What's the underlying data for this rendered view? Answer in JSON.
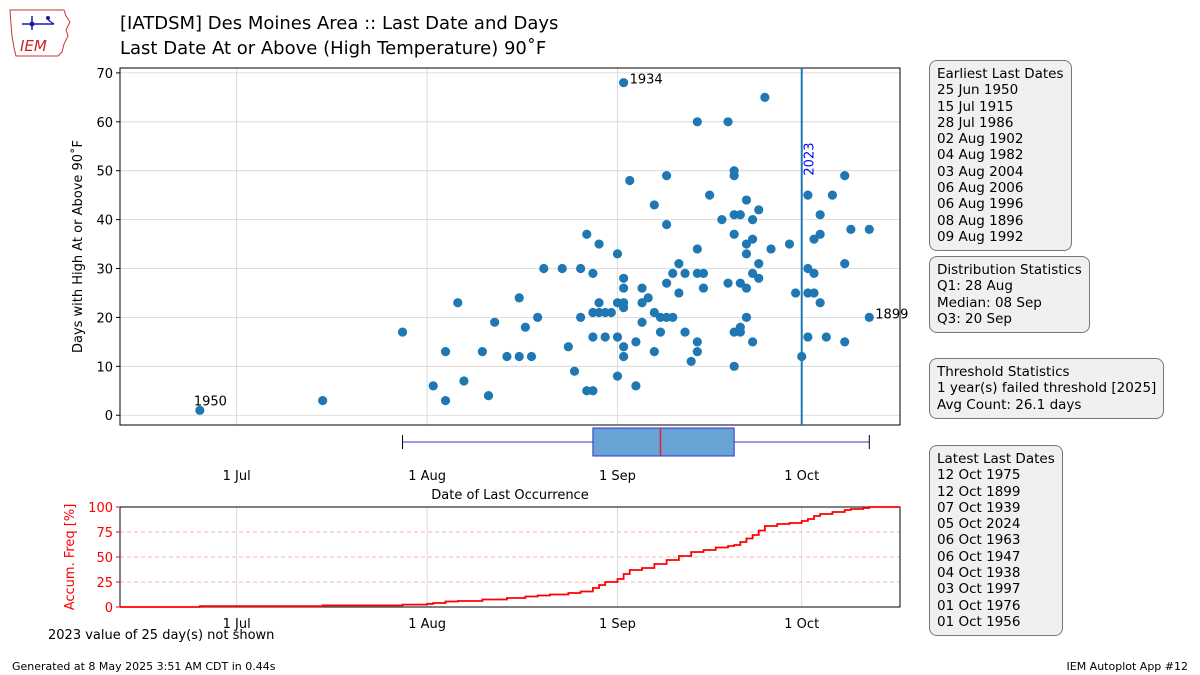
{
  "header": {
    "logo_text": "IEM",
    "title_line1": "[IATDSM] Des Moines Area :: Last Date and Days",
    "title_line2": "Last Date At or Above (High Temperature) 90˚F"
  },
  "boxes": {
    "earliest": {
      "heading": "Earliest Last Dates",
      "items": [
        "25 Jun 1950",
        "15 Jul 1915",
        "28 Jul 1986",
        "02 Aug 1902",
        "04 Aug 1982",
        "03 Aug 2004",
        "06 Aug 2006",
        "06 Aug 1996",
        "08 Aug 1896",
        "09 Aug 1992"
      ]
    },
    "distribution": {
      "heading": "Distribution Statistics",
      "items": [
        "Q1: 28 Aug",
        "Median: 08 Sep",
        "Q3: 20 Sep"
      ]
    },
    "threshold": {
      "heading": "Threshold Statistics",
      "items": [
        "1 year(s) failed threshold [2025]",
        "Avg Count: 26.1 days"
      ]
    },
    "latest": {
      "heading": "Latest Last Dates",
      "items": [
        "12 Oct 1975",
        "12 Oct 1899",
        "07 Oct 1939",
        "05 Oct 2024",
        "06 Oct 1963",
        "06 Oct 1947",
        "04 Oct 1938",
        "03 Oct 1997",
        "01 Oct 1976",
        "01 Oct 1956"
      ]
    }
  },
  "footer": {
    "note": "2023 value of 25 day(s) not shown",
    "generated": "Generated at 8 May 2025 3:51 AM CDT in 0.44s",
    "app": "IEM Autoplot App #12"
  },
  "chart_data": [
    {
      "type": "scatter",
      "ylabel": "Days with High At or Above 90˚F",
      "ylim": [
        -2,
        71
      ],
      "xlim": [
        163,
        290
      ],
      "yticks": [
        0,
        10,
        20,
        30,
        40,
        50,
        60,
        70
      ],
      "xticks": [
        {
          "label": "1 Jul",
          "doy": 182
        },
        {
          "label": "1 Aug",
          "doy": 213
        },
        {
          "label": "1 Sep",
          "doy": 244
        },
        {
          "label": "1 Oct",
          "doy": 274
        }
      ],
      "grid": true,
      "color": "#1f77b4",
      "points": [
        [
          176,
          1
        ],
        [
          196,
          3
        ],
        [
          209,
          17
        ],
        [
          214,
          6
        ],
        [
          216,
          3
        ],
        [
          216,
          13
        ],
        [
          218,
          23
        ],
        [
          219,
          7
        ],
        [
          222,
          13
        ],
        [
          223,
          4
        ],
        [
          224,
          19
        ],
        [
          226,
          12
        ],
        [
          228,
          12
        ],
        [
          228,
          24
        ],
        [
          229,
          18
        ],
        [
          230,
          12
        ],
        [
          231,
          20
        ],
        [
          232,
          30
        ],
        [
          235,
          30
        ],
        [
          236,
          14
        ],
        [
          237,
          9
        ],
        [
          238,
          20
        ],
        [
          238,
          30
        ],
        [
          239,
          5
        ],
        [
          239,
          37
        ],
        [
          240,
          5
        ],
        [
          240,
          16
        ],
        [
          240,
          21
        ],
        [
          240,
          29
        ],
        [
          241,
          21
        ],
        [
          241,
          23
        ],
        [
          241,
          35
        ],
        [
          242,
          16
        ],
        [
          242,
          21
        ],
        [
          243,
          21
        ],
        [
          244,
          16
        ],
        [
          244,
          23
        ],
        [
          244,
          33
        ],
        [
          244,
          8
        ],
        [
          245,
          12
        ],
        [
          245,
          14
        ],
        [
          245,
          22
        ],
        [
          245,
          23
        ],
        [
          245,
          26
        ],
        [
          245,
          28
        ],
        [
          245,
          68
        ],
        [
          246,
          48
        ],
        [
          247,
          6
        ],
        [
          247,
          15
        ],
        [
          248,
          19
        ],
        [
          248,
          23
        ],
        [
          248,
          26
        ],
        [
          249,
          24
        ],
        [
          250,
          13
        ],
        [
          250,
          21
        ],
        [
          250,
          43
        ],
        [
          251,
          17
        ],
        [
          251,
          20
        ],
        [
          252,
          20
        ],
        [
          252,
          27
        ],
        [
          252,
          39
        ],
        [
          252,
          49
        ],
        [
          253,
          20
        ],
        [
          253,
          29
        ],
        [
          254,
          25
        ],
        [
          254,
          31
        ],
        [
          255,
          17
        ],
        [
          255,
          29
        ],
        [
          256,
          11
        ],
        [
          257,
          13
        ],
        [
          257,
          15
        ],
        [
          257,
          29
        ],
        [
          257,
          34
        ],
        [
          257,
          60
        ],
        [
          258,
          26
        ],
        [
          258,
          29
        ],
        [
          259,
          45
        ],
        [
          261,
          40
        ],
        [
          262,
          27
        ],
        [
          262,
          60
        ],
        [
          263,
          10
        ],
        [
          263,
          17
        ],
        [
          263,
          37
        ],
        [
          263,
          41
        ],
        [
          263,
          49
        ],
        [
          263,
          50
        ],
        [
          264,
          17
        ],
        [
          264,
          18
        ],
        [
          264,
          27
        ],
        [
          264,
          41
        ],
        [
          265,
          20
        ],
        [
          265,
          26
        ],
        [
          265,
          33
        ],
        [
          265,
          35
        ],
        [
          265,
          44
        ],
        [
          266,
          15
        ],
        [
          266,
          29
        ],
        [
          266,
          36
        ],
        [
          266,
          40
        ],
        [
          267,
          28
        ],
        [
          267,
          31
        ],
        [
          267,
          42
        ],
        [
          268,
          65
        ],
        [
          269,
          34
        ],
        [
          272,
          35
        ],
        [
          273,
          25
        ],
        [
          274,
          12
        ],
        [
          275,
          16
        ],
        [
          275,
          25
        ],
        [
          275,
          30
        ],
        [
          275,
          45
        ],
        [
          276,
          25
        ],
        [
          276,
          29
        ],
        [
          276,
          36
        ],
        [
          277,
          23
        ],
        [
          277,
          37
        ],
        [
          277,
          41
        ],
        [
          278,
          16
        ],
        [
          279,
          45
        ],
        [
          281,
          15
        ],
        [
          281,
          31
        ],
        [
          281,
          49
        ],
        [
          282,
          38
        ],
        [
          285,
          20
        ],
        [
          285,
          38
        ]
      ],
      "annotations": [
        {
          "text": "1950",
          "x": 176,
          "y": 1
        },
        {
          "text": "1934",
          "x": 245,
          "y": 68
        },
        {
          "text": "1899",
          "x": 285,
          "y": 20
        },
        {
          "text": "2023",
          "x": 274,
          "y": 49,
          "rotated": true,
          "color": "#0000ff"
        }
      ],
      "vline": {
        "x": 274,
        "color": "#1f77b4"
      }
    },
    {
      "type": "box",
      "whisker_low": 209,
      "q1": 240,
      "median": 251,
      "q3": 263,
      "whisker_high": 285,
      "fill": "#67a3d4",
      "edge": "#3333cc",
      "median_color": "#dd2222",
      "xlabel": "Date of Last Occurrence"
    },
    {
      "type": "line",
      "ylabel": "Accum. Freq [%]",
      "ylim": [
        0,
        100
      ],
      "yticks": [
        0,
        25,
        50,
        75,
        100
      ],
      "color": "#ff0000",
      "series": [
        {
          "name": "",
          "x": [
            163,
            176,
            196,
            209,
            213,
            214,
            216,
            218,
            222,
            226,
            229,
            231,
            233,
            236,
            238,
            240,
            241,
            242,
            244,
            245,
            246,
            248,
            250,
            252,
            254,
            256,
            258,
            260,
            262,
            263,
            264,
            265,
            266,
            267,
            268,
            270,
            272,
            274,
            275,
            276,
            277,
            279,
            281,
            282,
            284,
            285,
            290
          ],
          "y": [
            0,
            0.8,
            1.6,
            2.4,
            3.2,
            4,
            5.5,
            6,
            7.5,
            9,
            10.5,
            11.5,
            12.5,
            14,
            15.5,
            19,
            22,
            25,
            28,
            33,
            37,
            39,
            43,
            47,
            51,
            55,
            57,
            59.5,
            61,
            62,
            65,
            68.5,
            72,
            76.5,
            81,
            83,
            84,
            86,
            88,
            91,
            93,
            95,
            97,
            98,
            99,
            100,
            100
          ]
        }
      ]
    }
  ]
}
